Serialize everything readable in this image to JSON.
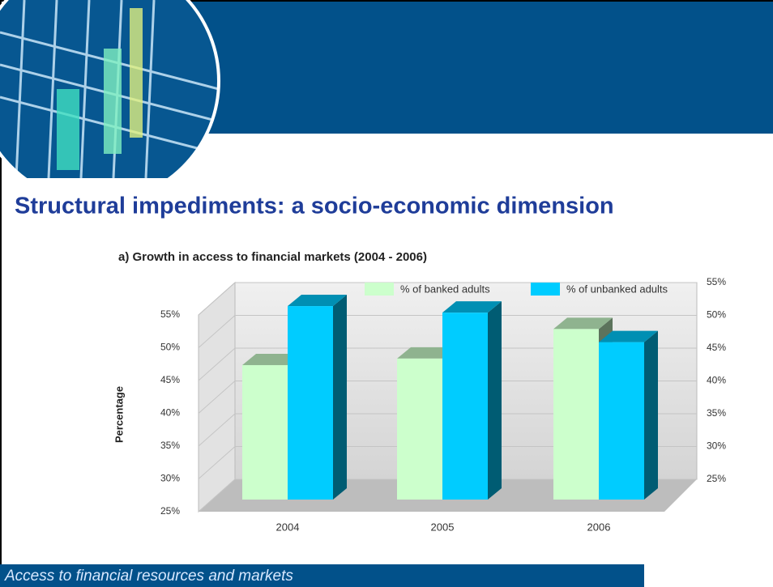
{
  "slide_title": "Structural impediments: a socio-economic dimension",
  "footer": "Access to financial resources and markets",
  "chart_data": {
    "type": "bar3d",
    "title": "a) Growth in access to financial markets (2004 - 2006)",
    "y_label": "Percentage",
    "categories": [
      "2004",
      "2005",
      "2006"
    ],
    "series": [
      {
        "name": "% of banked adults",
        "color": "#ccffcc",
        "values": [
          45.5,
          46.5,
          51
        ]
      },
      {
        "name": "% of unbanked adults",
        "color": "#00ccff",
        "values": [
          54.5,
          53.5,
          49
        ]
      }
    ],
    "ylim": [
      25,
      55
    ],
    "yticks": [
      {
        "value": 25,
        "label": "25%"
      },
      {
        "value": 30,
        "label": "30%"
      },
      {
        "value": 35,
        "label": "35%"
      },
      {
        "value": 40,
        "label": "40%"
      },
      {
        "value": 45,
        "label": "45%"
      },
      {
        "value": 50,
        "label": "50%"
      },
      {
        "value": 55,
        "label": "55%"
      }
    ],
    "y2lim": [
      25,
      55
    ],
    "y2ticks": [
      {
        "value": 25,
        "label": "25%"
      },
      {
        "value": 30,
        "label": "30%"
      },
      {
        "value": 35,
        "label": "35%"
      },
      {
        "value": 40,
        "label": "40%"
      },
      {
        "value": 45,
        "label": "45%"
      },
      {
        "value": 50,
        "label": "50%"
      },
      {
        "value": 55,
        "label": "55%"
      }
    ],
    "grid": true
  }
}
